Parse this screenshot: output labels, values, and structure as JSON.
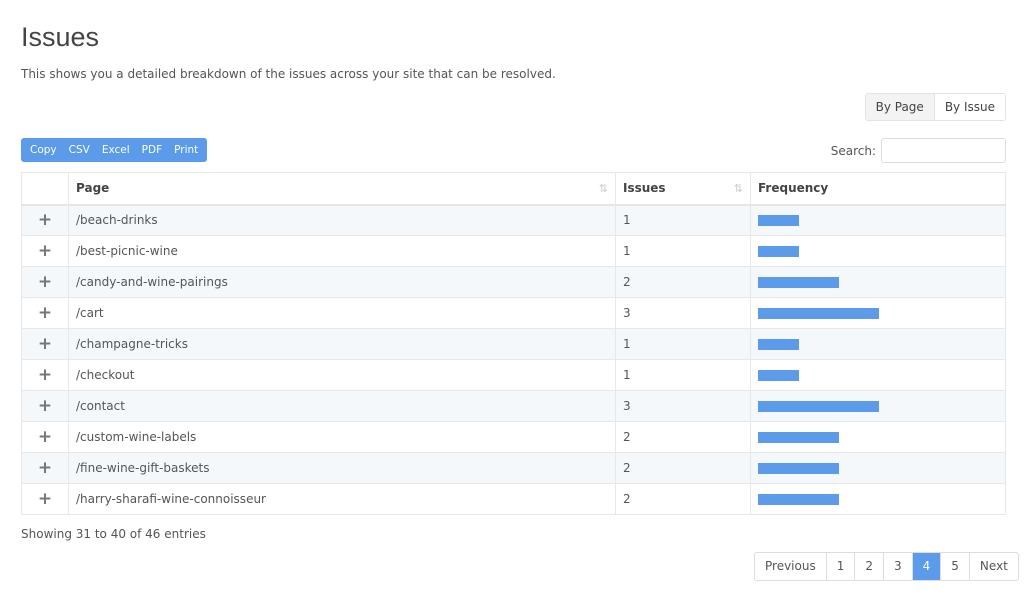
{
  "title": "Issues",
  "description": "This shows you a detailed breakdown of the issues across your site that can be resolved.",
  "view_toggle": {
    "by_page": "By Page",
    "by_issue": "By Issue",
    "active": "By Page"
  },
  "export_buttons": [
    "Copy",
    "CSV",
    "Excel",
    "PDF",
    "Print"
  ],
  "search": {
    "label": "Search:",
    "value": ""
  },
  "columns": [
    "Page",
    "Issues",
    "Frequency"
  ],
  "accent_color": "#5b9bea",
  "rows": [
    {
      "page": "/beach-drinks",
      "issues": 1
    },
    {
      "page": "/best-picnic-wine",
      "issues": 1
    },
    {
      "page": "/candy-and-wine-pairings",
      "issues": 2
    },
    {
      "page": "/cart",
      "issues": 3
    },
    {
      "page": "/champagne-tricks",
      "issues": 1
    },
    {
      "page": "/checkout",
      "issues": 1
    },
    {
      "page": "/contact",
      "issues": 3
    },
    {
      "page": "/custom-wine-labels",
      "issues": 2
    },
    {
      "page": "/fine-wine-gift-baskets",
      "issues": 2
    },
    {
      "page": "/harry-sharafi-wine-connoisseur",
      "issues": 2
    }
  ],
  "info": "Showing 31 to 40 of 46 entries",
  "pagination": {
    "previous": "Previous",
    "pages": [
      "1",
      "2",
      "3",
      "4",
      "5"
    ],
    "current": "4",
    "next": "Next"
  }
}
